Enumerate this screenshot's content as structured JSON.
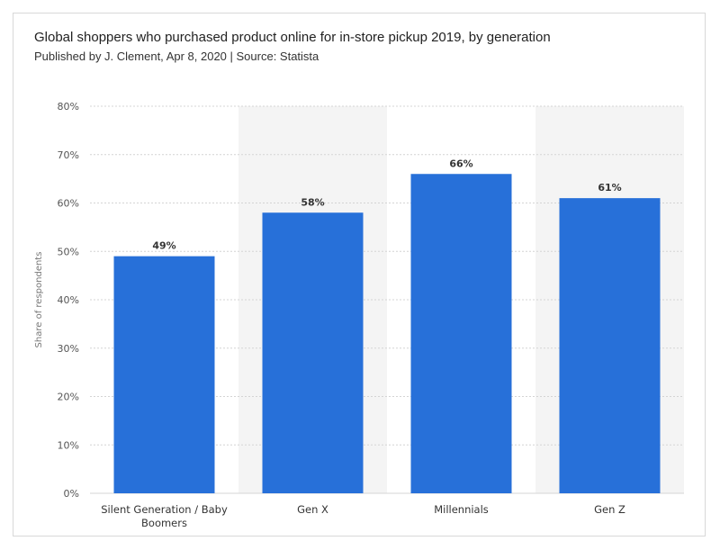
{
  "chart_data": {
    "type": "bar",
    "title": "Global shoppers who purchased product online for in-store pickup 2019, by generation",
    "subtitle": "Published by J. Clement, Apr 8, 2020 | Source: Statista",
    "xlabel": "",
    "ylabel": "Share of respondents",
    "categories": [
      [
        "Silent Generation / Baby",
        "Boomers"
      ],
      [
        "Gen X"
      ],
      [
        "Millennials"
      ],
      [
        "Gen Z"
      ]
    ],
    "values": [
      49,
      58,
      66,
      61
    ],
    "value_labels": [
      "49%",
      "58%",
      "66%",
      "61%"
    ],
    "ylim": [
      0,
      80
    ],
    "yticks": [
      0,
      10,
      20,
      30,
      40,
      50,
      60,
      70,
      80
    ],
    "ytick_labels": [
      "0%",
      "10%",
      "20%",
      "30%",
      "40%",
      "50%",
      "60%",
      "70%",
      "80%"
    ],
    "grid": true,
    "colors": {
      "bar": "#2770d9",
      "band": "#f4f4f4",
      "grid": "#d4d4d4"
    }
  }
}
